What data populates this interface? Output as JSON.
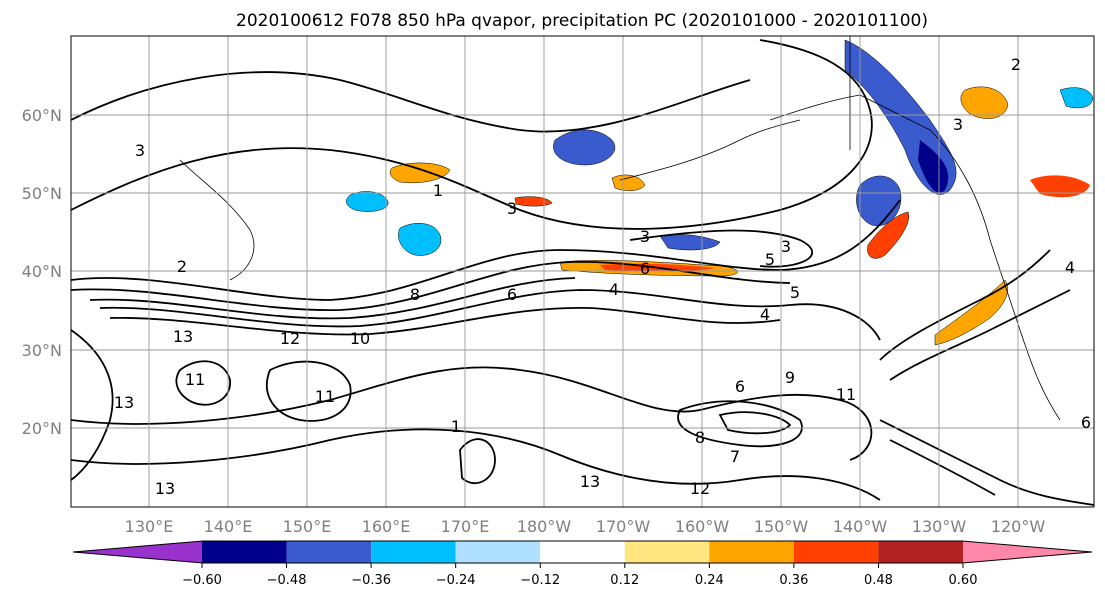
{
  "title": "2020100612 F078 850 hPa qvapor, precipitation PC (2020101000 - 2020101100)",
  "map": {
    "lat_labels": [
      "60°N",
      "50°N",
      "40°N",
      "30°N",
      "20°N"
    ],
    "lon_labels": [
      "130°E",
      "140°E",
      "150°E",
      "160°E",
      "170°E",
      "180°W",
      "170°W",
      "160°W",
      "150°W",
      "140°W",
      "130°W",
      "120°W"
    ],
    "contour_labels": [
      "3",
      "1",
      "3",
      "2",
      "3",
      "3",
      "5",
      "6",
      "4",
      "5",
      "4",
      "6",
      "8",
      "12",
      "10",
      "11",
      "13",
      "11",
      "13",
      "9",
      "6",
      "8",
      "7",
      "11",
      "12",
      "13",
      "13",
      "3",
      "4",
      "6",
      "1",
      "2"
    ]
  },
  "colorbar": {
    "tick_labels": [
      "−0.60",
      "−0.48",
      "−0.36",
      "−0.24",
      "−0.12",
      "0.12",
      "0.24",
      "0.36",
      "0.48",
      "0.60"
    ],
    "colors": [
      "#9932cc",
      "#00008b",
      "#3a5bcd",
      "#00bfff",
      "#b0e0ff",
      "#ffffff",
      "#ffe680",
      "#ffa500",
      "#ff4000",
      "#b22222",
      "#ff88aa"
    ]
  }
}
